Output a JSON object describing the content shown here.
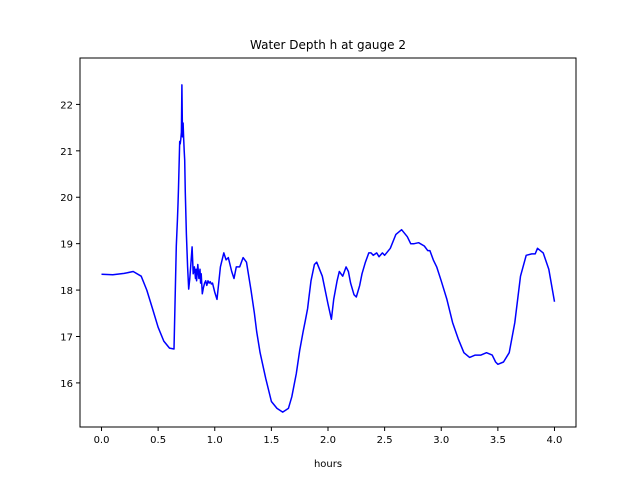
{
  "chart_data": {
    "type": "line",
    "title": "Water Depth h at gauge 2",
    "xlabel": "hours",
    "ylabel": "",
    "xlim": [
      -0.19,
      4.19
    ],
    "ylim": [
      15.05,
      23.0
    ],
    "xticks": [
      0.0,
      0.5,
      1.0,
      1.5,
      2.0,
      2.5,
      3.0,
      3.5,
      4.0
    ],
    "xtick_labels": [
      "0.0",
      "0.5",
      "1.0",
      "1.5",
      "2.0",
      "2.5",
      "3.0",
      "3.5",
      "4.0"
    ],
    "yticks": [
      16,
      17,
      18,
      19,
      20,
      21,
      22
    ],
    "ytick_labels": [
      "16",
      "17",
      "18",
      "19",
      "20",
      "21",
      "22"
    ],
    "grid": false,
    "series": [
      {
        "color": "#0000ff",
        "x": [
          0.0,
          0.1,
          0.2,
          0.28,
          0.35,
          0.4,
          0.45,
          0.5,
          0.55,
          0.6,
          0.64,
          0.66,
          0.665,
          0.67,
          0.675,
          0.68,
          0.69,
          0.695,
          0.7,
          0.705,
          0.71,
          0.715,
          0.72,
          0.725,
          0.73,
          0.735,
          0.74,
          0.75,
          0.76,
          0.77,
          0.78,
          0.8,
          0.81,
          0.82,
          0.83,
          0.835,
          0.84,
          0.85,
          0.86,
          0.87,
          0.875,
          0.88,
          0.89,
          0.9,
          0.91,
          0.92,
          0.93,
          0.94,
          0.95,
          0.96,
          0.97,
          0.98,
          1.0,
          1.02,
          1.05,
          1.08,
          1.1,
          1.12,
          1.15,
          1.17,
          1.19,
          1.22,
          1.25,
          1.28,
          1.32,
          1.35,
          1.37,
          1.4,
          1.45,
          1.5,
          1.55,
          1.6,
          1.65,
          1.68,
          1.72,
          1.75,
          1.78,
          1.8,
          1.82,
          1.83,
          1.85,
          1.88,
          1.9,
          1.95,
          2.0,
          2.03,
          2.05,
          2.08,
          2.1,
          2.13,
          2.16,
          2.18,
          2.2,
          2.23,
          2.25,
          2.28,
          2.3,
          2.33,
          2.36,
          2.38,
          2.4,
          2.43,
          2.45,
          2.48,
          2.5,
          2.55,
          2.6,
          2.65,
          2.7,
          2.73,
          2.76,
          2.8,
          2.85,
          2.88,
          2.9,
          2.93,
          2.96,
          3.0,
          3.05,
          3.1,
          3.15,
          3.2,
          3.25,
          3.3,
          3.35,
          3.4,
          3.45,
          3.48,
          3.5,
          3.55,
          3.6,
          3.65,
          3.7,
          3.75,
          3.8,
          3.83,
          3.85,
          3.9,
          3.95,
          4.0
        ],
        "y": [
          18.34,
          18.33,
          18.36,
          18.4,
          18.3,
          18.0,
          17.6,
          17.2,
          16.9,
          16.75,
          16.73,
          18.95,
          19.2,
          19.5,
          19.85,
          20.2,
          21.2,
          21.15,
          21.25,
          21.4,
          22.42,
          21.3,
          21.6,
          21.3,
          21.0,
          20.8,
          20.1,
          19.2,
          18.5,
          18.02,
          18.25,
          18.93,
          18.35,
          18.5,
          18.25,
          18.45,
          18.2,
          18.55,
          18.25,
          18.45,
          18.15,
          18.35,
          17.92,
          18.05,
          18.15,
          18.2,
          18.1,
          18.2,
          18.15,
          18.18,
          18.13,
          18.15,
          17.95,
          17.8,
          18.5,
          18.8,
          18.65,
          18.7,
          18.4,
          18.25,
          18.5,
          18.5,
          18.7,
          18.6,
          18.0,
          17.5,
          17.1,
          16.65,
          16.1,
          15.6,
          15.45,
          15.37,
          15.45,
          15.7,
          16.2,
          16.7,
          17.1,
          17.35,
          17.6,
          17.8,
          18.2,
          18.55,
          18.6,
          18.3,
          17.7,
          17.37,
          17.8,
          18.2,
          18.4,
          18.3,
          18.5,
          18.4,
          18.15,
          17.9,
          17.85,
          18.1,
          18.35,
          18.6,
          18.8,
          18.8,
          18.75,
          18.8,
          18.72,
          18.8,
          18.75,
          18.9,
          19.2,
          19.3,
          19.15,
          19.0,
          19.0,
          19.02,
          18.95,
          18.85,
          18.85,
          18.65,
          18.5,
          18.2,
          17.8,
          17.3,
          16.95,
          16.65,
          16.55,
          16.6,
          16.6,
          16.65,
          16.6,
          16.45,
          16.4,
          16.45,
          16.65,
          17.3,
          18.3,
          18.75,
          18.78,
          18.78,
          18.9,
          18.8,
          18.45,
          17.75
        ]
      }
    ]
  }
}
